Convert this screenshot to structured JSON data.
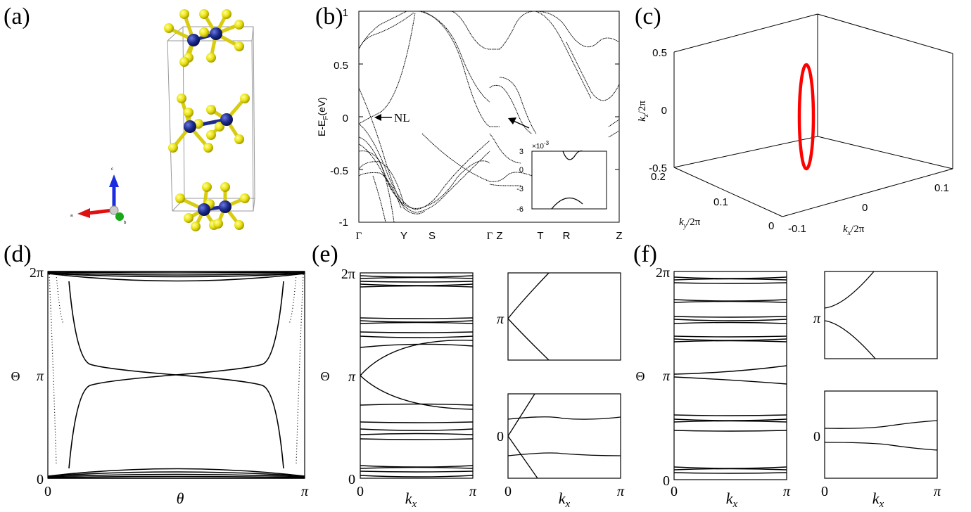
{
  "panels": {
    "a": {
      "label": "(a)",
      "axis_labels": {
        "c": "c",
        "a": "a",
        "b": "b"
      }
    },
    "b": {
      "label": "(b)",
      "ylabel": "E-E",
      "ylabel_sub": "F",
      "ylabel_unit": "(eV)",
      "yticks": [
        "1",
        "0.5",
        "0",
        "-0.5",
        "-1"
      ],
      "xticks": [
        "Γ",
        "Y",
        "S",
        "Γ",
        "Z",
        "T",
        "R",
        "Z"
      ],
      "annotation_nl": "NL",
      "inset": {
        "exponent": "×10",
        "exponent_power": "-3",
        "yticks": [
          "3",
          "0",
          "-3",
          "-6"
        ]
      }
    },
    "c": {
      "label": "(c)",
      "zticks": [
        "0.5",
        "0",
        "-0.5"
      ],
      "yticks": [
        "0.2",
        "0.1",
        "0"
      ],
      "xticks": [
        "-0.1",
        "0",
        "0.1"
      ],
      "zlabel": "k_z/2π",
      "ylabel": "k_y/2π",
      "xlabel": "k_x/2π",
      "line_color": "#ff0000"
    },
    "d": {
      "label": "(d)",
      "ylabel": "Θ",
      "yticks": [
        "2π",
        "π",
        "0"
      ],
      "xticks": [
        "0",
        "π"
      ],
      "xlabel": "θ"
    },
    "e": {
      "label": "(e)",
      "ylabel": "Θ",
      "yticks": [
        "2π",
        "π",
        "0"
      ],
      "xticks": [
        "0",
        "π"
      ],
      "xlabel": "k",
      "xlabel_sub": "x",
      "inset_top": {
        "ytick": "π"
      },
      "inset_bottom": {
        "ytick": "0",
        "xticks": [
          "0",
          "π"
        ],
        "xlabel": "k",
        "xlabel_sub": "x"
      }
    },
    "f": {
      "label": "(f)",
      "ylabel": "Θ",
      "yticks": [
        "2π",
        "π",
        "0"
      ],
      "xticks": [
        "0",
        "π"
      ],
      "xlabel": "k",
      "xlabel_sub": "x",
      "inset_top": {
        "ytick": "π"
      },
      "inset_bottom": {
        "ytick": "0",
        "xticks": [
          "0",
          "π"
        ],
        "xlabel": "k",
        "xlabel_sub": "x"
      }
    }
  },
  "colors": {
    "atom_dark": "#1c2a8c",
    "atom_yellow": "#e8e00e",
    "axis_red": "#e01010",
    "axis_blue": "#1a2ee0",
    "axis_green": "#18a818"
  }
}
